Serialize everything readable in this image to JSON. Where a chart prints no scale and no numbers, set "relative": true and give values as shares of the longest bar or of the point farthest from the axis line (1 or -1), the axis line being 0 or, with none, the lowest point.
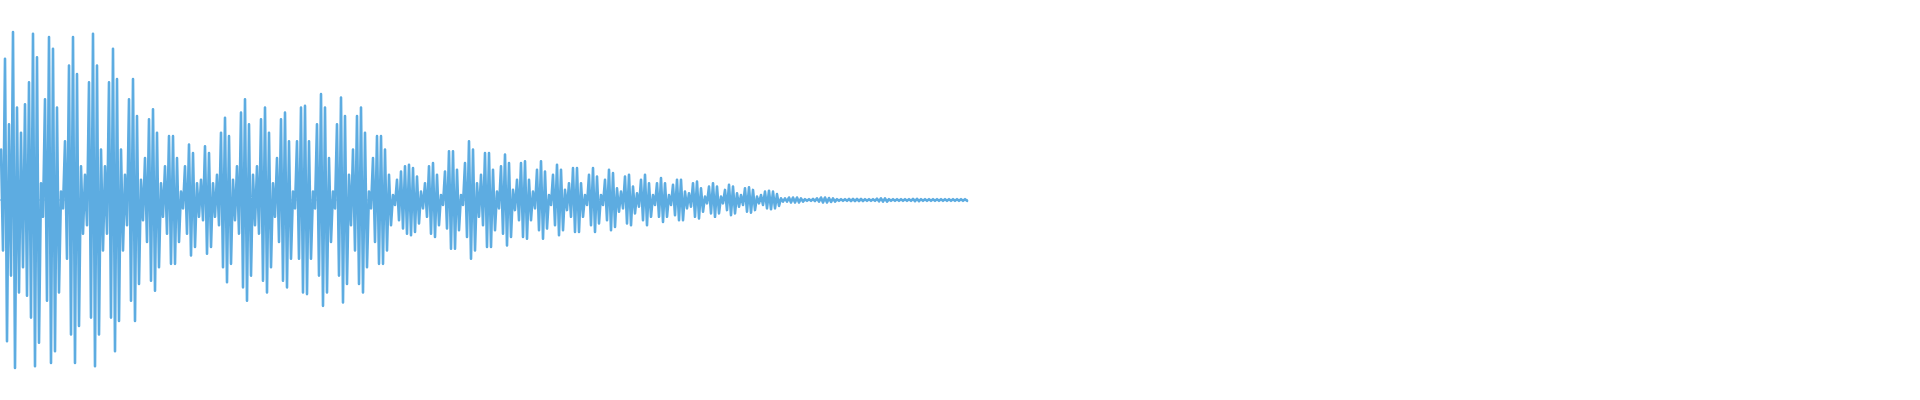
{
  "chart_data": {
    "type": "line",
    "relative": true,
    "color": "#5dace1",
    "ref_lines": [
      {
        "axis": "y",
        "value": 0
      }
    ],
    "categories": [
      null,
      null,
      null,
      null,
      null,
      null,
      null,
      null,
      null,
      null,
      null,
      null,
      null,
      null,
      null,
      null,
      null,
      null,
      null,
      null,
      null,
      null,
      null,
      null,
      null,
      null,
      null,
      null,
      null,
      null,
      null,
      null,
      null,
      null,
      null,
      null,
      null,
      null,
      null,
      null,
      null,
      null,
      null,
      null,
      null,
      null,
      null,
      null,
      null,
      null,
      null,
      null,
      null,
      null,
      null,
      null,
      null,
      null,
      null,
      null,
      null,
      null,
      null,
      null,
      null,
      null,
      null,
      null,
      null,
      null,
      null,
      null,
      null,
      null,
      null,
      null,
      null,
      null,
      null,
      null,
      null,
      null,
      null,
      null,
      null,
      null,
      null,
      null,
      null,
      null,
      null,
      null,
      null,
      null,
      null,
      null,
      null,
      null,
      null,
      null,
      null,
      null,
      null,
      null,
      null,
      null,
      null,
      null,
      null,
      null,
      null,
      null,
      null,
      null,
      null,
      null,
      null,
      null,
      null,
      null,
      null,
      null,
      null,
      null,
      null,
      null,
      null,
      null,
      null,
      null,
      null,
      null,
      null,
      null,
      null,
      null,
      null,
      null,
      null,
      null,
      null,
      null,
      null,
      null,
      null,
      null,
      null,
      null,
      null,
      null,
      null,
      null,
      null,
      null,
      null,
      null,
      null,
      null,
      null,
      null,
      null,
      null,
      null,
      null,
      null,
      null,
      null,
      null,
      null,
      null,
      null,
      null,
      null,
      null,
      null,
      null,
      null,
      null,
      null,
      null,
      null,
      null,
      null,
      null,
      null,
      null,
      null,
      null,
      null,
      null,
      null,
      null,
      null,
      null,
      null,
      null,
      null,
      null,
      null,
      null,
      null,
      null,
      null,
      null,
      null,
      null,
      null,
      null,
      null,
      null,
      null,
      null,
      null,
      null,
      null,
      null,
      null,
      null,
      null,
      null,
      null,
      null,
      null,
      null,
      null,
      null,
      null,
      null,
      null,
      null,
      null,
      null,
      null,
      null,
      null,
      null,
      null,
      null,
      null,
      null,
      null,
      null,
      null,
      null,
      null,
      null,
      null,
      null,
      null,
      null,
      null,
      null,
      null,
      null,
      null,
      null,
      null,
      null,
      null,
      null,
      null,
      null,
      null,
      null,
      null,
      null,
      null,
      null,
      null,
      null,
      null,
      null,
      null,
      null,
      null,
      null,
      null,
      null,
      null,
      null,
      null,
      null,
      null,
      null,
      null,
      null,
      null,
      null,
      null,
      null,
      null,
      null,
      null,
      null,
      null,
      null,
      null,
      null,
      null,
      null,
      null,
      null,
      null,
      null,
      null,
      null,
      null,
      null,
      null,
      null,
      null,
      null,
      null,
      null,
      null,
      null,
      null,
      null,
      null,
      null,
      null,
      null,
      null,
      null,
      null,
      null,
      null,
      null,
      null,
      null,
      null,
      null,
      null,
      null,
      null,
      null,
      null,
      null,
      null,
      null,
      null,
      null,
      null,
      null,
      null,
      null,
      null,
      null,
      null,
      null,
      null,
      null,
      null,
      null,
      null,
      null,
      null,
      null,
      null,
      null,
      null,
      null,
      null,
      null,
      null,
      null,
      null,
      null,
      null,
      null,
      null,
      null,
      null,
      null,
      null,
      null,
      null,
      null,
      null,
      null,
      null,
      null,
      null,
      null,
      null,
      null,
      null,
      null,
      null,
      null,
      null,
      null,
      null,
      null,
      null,
      null,
      null,
      null,
      null,
      null,
      null,
      null,
      null,
      null,
      null,
      null,
      null,
      null,
      null,
      null,
      null,
      null,
      null,
      null,
      null,
      null,
      null,
      null,
      null,
      null,
      null,
      null,
      null,
      null,
      null,
      null,
      null,
      null,
      null,
      null,
      null,
      null,
      null,
      null,
      null,
      null,
      null,
      null,
      null,
      null,
      null,
      null,
      null,
      null,
      null,
      null,
      null,
      null,
      null,
      null,
      null,
      null,
      null,
      null,
      null,
      null,
      null,
      null,
      null,
      null,
      null,
      null,
      null,
      null,
      null,
      null,
      null,
      null,
      null,
      null,
      null,
      null,
      null,
      null,
      null,
      null,
      null,
      null,
      null,
      null,
      null,
      null,
      null,
      null
    ],
    "values": [
      0.3,
      -0.3,
      0.84,
      -0.84,
      0.45,
      -0.45,
      1,
      -1,
      0.55,
      -0.55,
      0.4,
      -0.4,
      0.57,
      -0.57,
      0.7,
      -0.7,
      0.99,
      -0.99,
      0.85,
      -0.85,
      0.1,
      -0.1,
      0.6,
      -0.6,
      0.97,
      -0.97,
      0.9,
      -0.9,
      0.55,
      -0.55,
      0.05,
      -0.05,
      0.35,
      -0.35,
      0.8,
      -0.8,
      0.97,
      -0.97,
      0.75,
      -0.75,
      0.2,
      -0.2,
      0.15,
      -0.15,
      0.7,
      -0.7,
      0.99,
      -0.99,
      0.8,
      -0.8,
      0.3,
      -0.3,
      0.2,
      -0.2,
      0.7,
      -0.7,
      0.9,
      -0.9,
      0.72,
      -0.72,
      0.3,
      -0.3,
      0.15,
      -0.15,
      0.6,
      -0.6,
      0.72,
      -0.72,
      0.5,
      -0.5,
      0.12,
      -0.12,
      0.25,
      -0.25,
      0.48,
      -0.48,
      0.54,
      -0.54,
      0.4,
      -0.4,
      0.1,
      -0.1,
      0.2,
      -0.2,
      0.38,
      -0.38,
      0.38,
      -0.38,
      0.25,
      -0.25,
      0.05,
      -0.05,
      0.2,
      -0.2,
      0.33,
      -0.33,
      0.28,
      -0.28,
      0.1,
      -0.1,
      0.12,
      -0.12,
      0.32,
      -0.32,
      0.28,
      -0.28,
      0.1,
      -0.1,
      0.15,
      -0.15,
      0.4,
      -0.4,
      0.49,
      -0.49,
      0.38,
      -0.38,
      0.12,
      -0.12,
      0.2,
      -0.2,
      0.52,
      -0.52,
      0.6,
      -0.6,
      0.45,
      -0.45,
      0.15,
      -0.15,
      0.2,
      -0.2,
      0.48,
      -0.48,
      0.55,
      -0.55,
      0.4,
      -0.4,
      0.1,
      -0.1,
      0.25,
      -0.25,
      0.48,
      -0.48,
      0.52,
      -0.52,
      0.35,
      -0.35,
      0.05,
      -0.05,
      0.35,
      -0.35,
      0.55,
      -0.55,
      0.56,
      -0.56,
      0.35,
      -0.35,
      0.05,
      -0.05,
      0.45,
      -0.45,
      0.63,
      -0.63,
      0.55,
      -0.55,
      0.25,
      -0.25,
      0.05,
      -0.05,
      0.45,
      -0.45,
      0.61,
      -0.61,
      0.5,
      -0.5,
      0.15,
      -0.15,
      0.3,
      -0.3,
      0.5,
      -0.5,
      0.55,
      -0.55,
      0.4,
      -0.4,
      0.05,
      -0.05,
      0.25,
      -0.25,
      0.38,
      -0.38,
      0.38,
      -0.38,
      0.3,
      -0.3,
      0.15,
      -0.15,
      0.03,
      -0.03,
      0.12,
      -0.12,
      0.17,
      -0.17,
      0.2,
      -0.2,
      0.21,
      -0.21,
      0.19,
      -0.19,
      0.14,
      -0.14,
      0.05,
      -0.05,
      0.1,
      -0.1,
      0.2,
      -0.2,
      0.22,
      -0.22,
      0.15,
      -0.15,
      0.03,
      -0.03,
      0.17,
      -0.17,
      0.29,
      -0.29,
      0.29,
      -0.29,
      0.18,
      -0.18,
      0.03,
      -0.03,
      0.22,
      -0.22,
      0.35,
      -0.35,
      0.3,
      -0.3,
      0.1,
      -0.1,
      0.15,
      -0.15,
      0.28,
      -0.28,
      0.28,
      -0.28,
      0.18,
      -0.18,
      0.05,
      -0.05,
      0.2,
      -0.2,
      0.27,
      -0.27,
      0.22,
      -0.22,
      0.06,
      -0.06,
      0.12,
      -0.12,
      0.22,
      -0.22,
      0.23,
      -0.23,
      0.12,
      -0.12,
      0.05,
      -0.05,
      0.18,
      -0.18,
      0.23,
      -0.23,
      0.17,
      -0.17,
      0.03,
      -0.03,
      0.15,
      -0.15,
      0.21,
      -0.21,
      0.18,
      -0.18,
      0.06,
      -0.06,
      0.1,
      -0.1,
      0.19,
      -0.19,
      0.19,
      -0.19,
      0.1,
      -0.1,
      0.03,
      -0.03,
      0.15,
      -0.15,
      0.19,
      -0.19,
      0.14,
      -0.14,
      0.03,
      -0.03,
      0.12,
      -0.12,
      0.18,
      -0.18,
      0.16,
      -0.16,
      0.07,
      -0.07,
      0.05,
      -0.05,
      0.14,
      -0.14,
      0.15,
      -0.15,
      0.08,
      -0.08,
      0.04,
      -0.04,
      0.12,
      -0.12,
      0.15,
      -0.15,
      0.1,
      -0.1,
      0.03,
      -0.03,
      0.1,
      -0.1,
      0.13,
      -0.13,
      0.1,
      -0.1,
      0.03,
      -0.03,
      0.09,
      -0.09,
      0.12,
      -0.12,
      0.12,
      -0.12,
      0.05,
      -0.05,
      0.04,
      -0.04,
      0.1,
      -0.1,
      0.11,
      -0.11,
      0.07,
      -0.07,
      0.02,
      -0.02,
      0.08,
      -0.08,
      0.1,
      -0.1,
      0.08,
      -0.08,
      0.02,
      -0.02,
      0.06,
      -0.06,
      0.09,
      -0.09,
      0.08,
      -0.08,
      0.04,
      -0.04,
      0.03,
      -0.03,
      0.07,
      -0.07,
      0.075,
      -0.075,
      0.06,
      -0.06,
      0.02,
      -0.02,
      0.03,
      -0.03,
      0.05,
      -0.05,
      0.055,
      -0.055,
      0.05,
      -0.05,
      0.035,
      -0.035,
      0.01,
      -0.01,
      0.01,
      -0.01,
      0.015,
      -0.015,
      0.015,
      -0.015,
      0.015,
      -0.015,
      0.01,
      -0.01,
      0.005,
      -0.005,
      0.005,
      -0.005,
      0.006,
      -0.006,
      0.01,
      -0.01,
      0.015,
      -0.015,
      0.015,
      -0.015,
      0.012,
      -0.012,
      0.01,
      -0.01,
      0.005,
      -0.005,
      0.005,
      -0.005,
      0.005,
      -0.005,
      0.006,
      -0.006,
      0.006,
      -0.006,
      0.006,
      -0.006,
      0.006,
      -0.006,
      0.005,
      -0.005,
      0.005,
      -0.005,
      0.005,
      -0.005,
      0.008,
      -0.008,
      0.01,
      -0.01,
      0.01,
      -0.01,
      0.005,
      -0.005,
      0.005,
      -0.005,
      0.005,
      -0.005,
      0.005,
      -0.005,
      0.005,
      -0.005,
      0.005,
      -0.005,
      0.007,
      -0.007,
      0.007,
      -0.007,
      0.005,
      -0.005,
      0.005,
      -0.005,
      0.005,
      -0.005,
      0.005,
      -0.005,
      0.005,
      -0.005,
      0.005,
      -0.005,
      0.005,
      -0.005,
      0.005,
      -0.005,
      0.005,
      -0.005,
      0.005,
      -0.005,
      0.005,
      -0.005,
      0.005,
      -0.005
    ]
  }
}
